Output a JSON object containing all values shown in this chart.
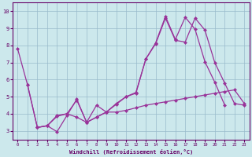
{
  "bg_color": "#cce8ec",
  "line_color": "#993399",
  "grid_color": "#99bbcc",
  "axis_color": "#660066",
  "xlim": [
    -0.5,
    23.5
  ],
  "ylim": [
    2.5,
    10.5
  ],
  "xticks": [
    0,
    1,
    2,
    3,
    4,
    5,
    6,
    7,
    8,
    9,
    10,
    11,
    12,
    13,
    14,
    15,
    16,
    17,
    18,
    19,
    20,
    21,
    22,
    23
  ],
  "yticks": [
    3,
    4,
    5,
    6,
    7,
    8,
    9,
    10
  ],
  "xlabel": "Windchill (Refroidissement éolien,°C)",
  "series": [
    {
      "x": [
        0,
        1,
        2,
        3,
        4,
        5,
        6,
        7,
        8,
        9,
        10,
        11,
        12,
        13,
        14,
        15,
        16,
        17,
        18,
        19,
        20,
        21
      ],
      "y": [
        7.8,
        5.7,
        3.2,
        3.3,
        2.95,
        3.9,
        4.85,
        3.5,
        4.5,
        4.1,
        4.55,
        5.0,
        5.25,
        7.2,
        8.15,
        9.7,
        8.35,
        9.65,
        8.95,
        7.05,
        5.85,
        4.52
      ]
    },
    {
      "x": [
        2,
        3,
        4,
        5,
        6,
        7,
        8,
        9,
        10,
        11,
        12,
        13,
        14,
        15,
        16,
        17,
        18,
        19,
        20,
        21,
        22,
        23
      ],
      "y": [
        3.2,
        3.3,
        3.9,
        4.0,
        4.8,
        3.5,
        3.8,
        4.1,
        4.6,
        5.0,
        5.2,
        7.2,
        8.1,
        9.6,
        8.3,
        8.2,
        9.6,
        8.9,
        7.0,
        5.8,
        4.6,
        4.5
      ]
    },
    {
      "x": [
        1,
        2,
        3,
        4,
        5,
        6,
        7,
        8,
        9,
        10,
        11,
        12,
        13,
        14,
        15,
        16,
        17,
        18,
        19,
        20,
        21,
        22,
        23
      ],
      "y": [
        5.7,
        3.2,
        3.3,
        3.85,
        4.0,
        3.8,
        3.5,
        3.8,
        4.1,
        4.1,
        4.2,
        4.35,
        4.5,
        4.6,
        4.7,
        4.8,
        4.9,
        5.0,
        5.1,
        5.2,
        5.3,
        5.4,
        4.6
      ]
    }
  ]
}
